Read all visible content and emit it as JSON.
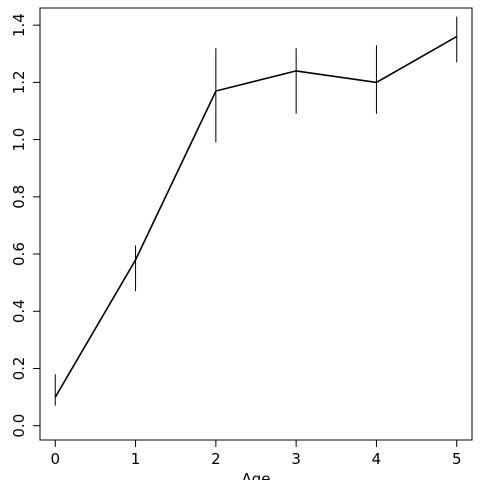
{
  "chart_data": {
    "type": "line",
    "title": "",
    "xlabel": "Age",
    "ylabel": "",
    "xlim": [
      -0.19,
      5.19
    ],
    "ylim": [
      -0.05,
      1.46
    ],
    "x_ticks": [
      0,
      1,
      2,
      3,
      4,
      5
    ],
    "x_tick_labels": [
      "0",
      "1",
      "2",
      "3",
      "4",
      "5"
    ],
    "y_ticks": [
      0.0,
      0.2,
      0.4,
      0.6,
      0.8,
      1.0,
      1.2,
      1.4
    ],
    "y_tick_labels": [
      "0.0",
      "0.2",
      "0.4",
      "0.6",
      "0.8",
      "1.0",
      "1.2",
      "1.4"
    ],
    "grid": false,
    "legend": "none",
    "series": [
      {
        "x": [
          0,
          1,
          2,
          3,
          4,
          5
        ],
        "y": [
          0.1,
          0.58,
          1.17,
          1.24,
          1.2,
          1.36
        ],
        "error_low": [
          0.07,
          0.47,
          0.99,
          1.09,
          1.09,
          1.27
        ],
        "error_high": [
          0.18,
          0.63,
          1.32,
          1.32,
          1.33,
          1.43
        ],
        "color": "#000000"
      }
    ]
  }
}
